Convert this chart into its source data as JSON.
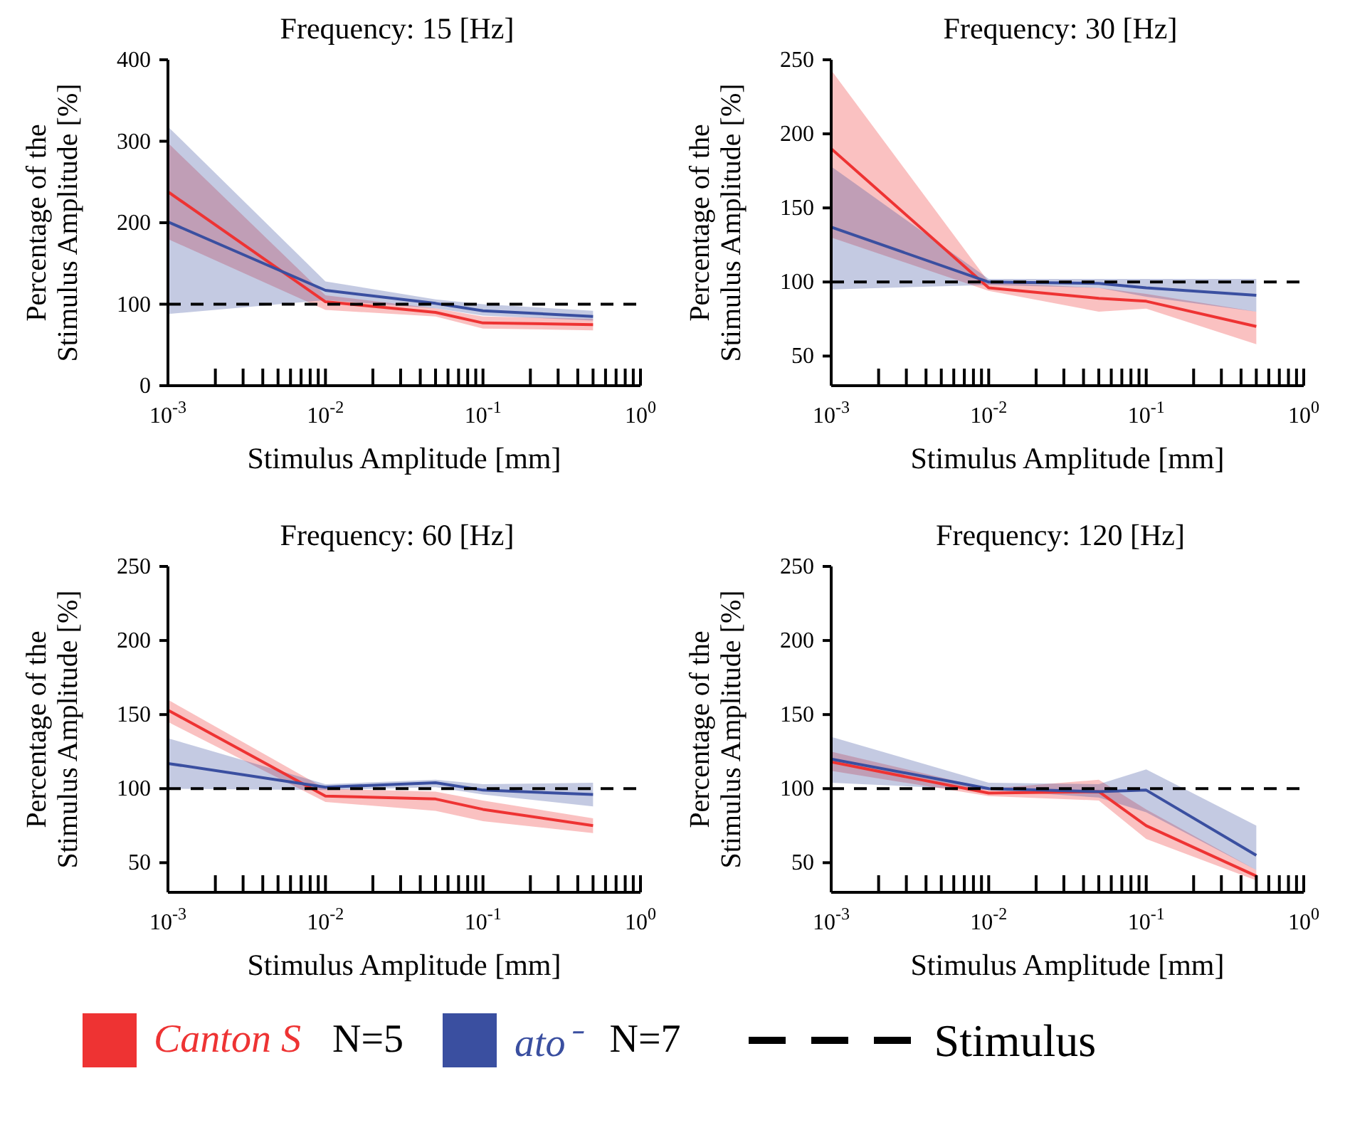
{
  "chart_data": [
    {
      "type": "line",
      "title": "Frequency: 15 [Hz]",
      "xlabel": "Stimulus Amplitude  [mm]",
      "ylabel": "Percentage of the\nStimulus Amplitude [%]",
      "log": "x",
      "legend": "bottom",
      "annotations": [
        "N=5",
        "N=7"
      ],
      "x": [
        0.001,
        0.01,
        0.05,
        0.1,
        0.5
      ],
      "xlim": [
        0.001,
        1
      ],
      "xticks": [
        {
          "value": 0.001,
          "label": "10$^{-3}$"
        },
        {
          "value": 0.002,
          "label": null
        },
        {
          "value": 0.003,
          "label": null
        },
        {
          "value": 0.004,
          "label": null
        },
        {
          "value": 0.005,
          "label": null
        },
        {
          "value": 0.006,
          "label": null
        },
        {
          "value": 0.007,
          "label": null
        },
        {
          "value": 0.008,
          "label": null
        },
        {
          "value": 0.009,
          "label": null
        },
        {
          "value": 0.01,
          "label": "10$^{-2}$"
        },
        {
          "value": 0.02,
          "label": null
        },
        {
          "value": 0.03,
          "label": null
        },
        {
          "value": 0.04,
          "label": null
        },
        {
          "value": 0.05,
          "label": null
        },
        {
          "value": 0.06,
          "label": null
        },
        {
          "value": 0.07,
          "label": null
        },
        {
          "value": 0.08,
          "label": null
        },
        {
          "value": 0.09,
          "label": null
        },
        {
          "value": 0.1,
          "label": "10$^{-1}$"
        },
        {
          "value": 0.2,
          "label": null
        },
        {
          "value": 0.3,
          "label": null
        },
        {
          "value": 0.4,
          "label": null
        },
        {
          "value": 0.5,
          "label": null
        },
        {
          "value": 0.6,
          "label": null
        },
        {
          "value": 0.7,
          "label": null
        },
        {
          "value": 0.8,
          "label": null
        },
        {
          "value": 0.9,
          "label": null
        },
        {
          "value": 1,
          "label": "10$^{0}$"
        }
      ],
      "ylim": [
        0,
        400
      ],
      "yticks": [
        0,
        100,
        200,
        300,
        400
      ],
      "ref_lines": [
        {
          "axis": "y",
          "value": 100,
          "label": "Stimulus",
          "color": "#000000",
          "line_style": "dashed"
        }
      ],
      "series": [
        {
          "name": "Canton S",
          "color": "#ee3333",
          "values": [
            238,
            103,
            90,
            77,
            75
          ],
          "lower": [
            180,
            93,
            85,
            70,
            68
          ],
          "upper": [
            298,
            111,
            95,
            85,
            82
          ]
        },
        {
          "name": "ato⁻",
          "color": "#3a4fa0",
          "values": [
            201,
            117,
            101,
            92,
            85
          ],
          "lower": [
            88,
            105,
            95,
            86,
            80
          ],
          "upper": [
            318,
            128,
            106,
            100,
            92
          ]
        }
      ]
    },
    {
      "type": "line",
      "title": "Frequency: 30 [Hz]",
      "xlabel": "Stimulus Amplitude  [mm]",
      "ylabel": "Percentage of the\nStimulus Amplitude [%]",
      "log": "x",
      "x": [
        0.001,
        0.01,
        0.05,
        0.1,
        0.5
      ],
      "xlim": [
        0.001,
        1
      ],
      "xticks": [
        {
          "value": 0.001,
          "label": "10$^{-3}$"
        },
        {
          "value": 0.002,
          "label": null
        },
        {
          "value": 0.003,
          "label": null
        },
        {
          "value": 0.004,
          "label": null
        },
        {
          "value": 0.005,
          "label": null
        },
        {
          "value": 0.006,
          "label": null
        },
        {
          "value": 0.007,
          "label": null
        },
        {
          "value": 0.008,
          "label": null
        },
        {
          "value": 0.009,
          "label": null
        },
        {
          "value": 0.01,
          "label": "10$^{-2}$"
        },
        {
          "value": 0.02,
          "label": null
        },
        {
          "value": 0.03,
          "label": null
        },
        {
          "value": 0.04,
          "label": null
        },
        {
          "value": 0.05,
          "label": null
        },
        {
          "value": 0.06,
          "label": null
        },
        {
          "value": 0.07,
          "label": null
        },
        {
          "value": 0.08,
          "label": null
        },
        {
          "value": 0.09,
          "label": null
        },
        {
          "value": 0.1,
          "label": "10$^{-1}$"
        },
        {
          "value": 0.2,
          "label": null
        },
        {
          "value": 0.3,
          "label": null
        },
        {
          "value": 0.4,
          "label": null
        },
        {
          "value": 0.5,
          "label": null
        },
        {
          "value": 0.6,
          "label": null
        },
        {
          "value": 0.7,
          "label": null
        },
        {
          "value": 0.8,
          "label": null
        },
        {
          "value": 0.9,
          "label": null
        },
        {
          "value": 1,
          "label": "10$^{0}$"
        }
      ],
      "ylim": [
        30,
        250
      ],
      "yticks": [
        50,
        100,
        150,
        200,
        250
      ],
      "ref_lines": [
        {
          "axis": "y",
          "value": 100,
          "color": "#000000",
          "line_style": "dashed"
        }
      ],
      "series": [
        {
          "color": "#ee3333",
          "values": [
            190,
            96,
            89,
            87,
            70
          ],
          "lower": [
            130,
            94,
            80,
            82,
            58
          ],
          "upper": [
            243,
            100,
            96,
            92,
            80
          ]
        },
        {
          "color": "#3a4fa0",
          "values": [
            137,
            100,
            99,
            96,
            91
          ],
          "lower": [
            95,
            98,
            96,
            90,
            80
          ],
          "upper": [
            178,
            102,
            102,
            102,
            102
          ]
        }
      ]
    },
    {
      "type": "line",
      "title": "Frequency: 60 [Hz]",
      "xlabel": "Stimulus Amplitude  [mm]",
      "ylabel": "Percentage of the\nStimulus Amplitude [%]",
      "log": "x",
      "x": [
        0.001,
        0.01,
        0.05,
        0.1,
        0.5
      ],
      "xlim": [
        0.001,
        1
      ],
      "xticks": [
        {
          "value": 0.001,
          "label": "10$^{-3}$"
        },
        {
          "value": 0.002,
          "label": null
        },
        {
          "value": 0.003,
          "label": null
        },
        {
          "value": 0.004,
          "label": null
        },
        {
          "value": 0.005,
          "label": null
        },
        {
          "value": 0.006,
          "label": null
        },
        {
          "value": 0.007,
          "label": null
        },
        {
          "value": 0.008,
          "label": null
        },
        {
          "value": 0.009,
          "label": null
        },
        {
          "value": 0.01,
          "label": "10$^{-2}$"
        },
        {
          "value": 0.02,
          "label": null
        },
        {
          "value": 0.03,
          "label": null
        },
        {
          "value": 0.04,
          "label": null
        },
        {
          "value": 0.05,
          "label": null
        },
        {
          "value": 0.06,
          "label": null
        },
        {
          "value": 0.07,
          "label": null
        },
        {
          "value": 0.08,
          "label": null
        },
        {
          "value": 0.09,
          "label": null
        },
        {
          "value": 0.1,
          "label": "10$^{-1}$"
        },
        {
          "value": 0.2,
          "label": null
        },
        {
          "value": 0.3,
          "label": null
        },
        {
          "value": 0.4,
          "label": null
        },
        {
          "value": 0.5,
          "label": null
        },
        {
          "value": 0.6,
          "label": null
        },
        {
          "value": 0.7,
          "label": null
        },
        {
          "value": 0.8,
          "label": null
        },
        {
          "value": 0.9,
          "label": null
        },
        {
          "value": 1,
          "label": "10$^{0}$"
        }
      ],
      "ylim": [
        30,
        250
      ],
      "yticks": [
        50,
        100,
        150,
        200,
        250
      ],
      "ref_lines": [
        {
          "axis": "y",
          "value": 100,
          "color": "#000000",
          "line_style": "dashed"
        }
      ],
      "series": [
        {
          "color": "#ee3333",
          "values": [
            153,
            95,
            93,
            86,
            75
          ],
          "lower": [
            145,
            91,
            85,
            78,
            70
          ],
          "upper": [
            160,
            100,
            98,
            92,
            80
          ]
        },
        {
          "color": "#3a4fa0",
          "values": [
            117,
            101,
            104,
            99,
            96
          ],
          "lower": [
            100,
            99,
            101,
            96,
            88
          ],
          "upper": [
            134,
            103,
            106,
            103,
            104
          ]
        }
      ]
    },
    {
      "type": "line",
      "title": "Frequency: 120 [Hz]",
      "xlabel": "Stimulus Amplitude  [mm]",
      "ylabel": "Percentage of the\nStimulus Amplitude [%]",
      "log": "x",
      "x": [
        0.001,
        0.01,
        0.05,
        0.1,
        0.5
      ],
      "xlim": [
        0.001,
        1
      ],
      "xticks": [
        {
          "value": 0.001,
          "label": "10$^{-3}$"
        },
        {
          "value": 0.002,
          "label": null
        },
        {
          "value": 0.003,
          "label": null
        },
        {
          "value": 0.004,
          "label": null
        },
        {
          "value": 0.005,
          "label": null
        },
        {
          "value": 0.006,
          "label": null
        },
        {
          "value": 0.007,
          "label": null
        },
        {
          "value": 0.008,
          "label": null
        },
        {
          "value": 0.009,
          "label": null
        },
        {
          "value": 0.01,
          "label": "10$^{-2}$"
        },
        {
          "value": 0.02,
          "label": null
        },
        {
          "value": 0.03,
          "label": null
        },
        {
          "value": 0.04,
          "label": null
        },
        {
          "value": 0.05,
          "label": null
        },
        {
          "value": 0.06,
          "label": null
        },
        {
          "value": 0.07,
          "label": null
        },
        {
          "value": 0.08,
          "label": null
        },
        {
          "value": 0.09,
          "label": null
        },
        {
          "value": 0.1,
          "label": "10$^{-1}$"
        },
        {
          "value": 0.2,
          "label": null
        },
        {
          "value": 0.3,
          "label": null
        },
        {
          "value": 0.4,
          "label": null
        },
        {
          "value": 0.5,
          "label": null
        },
        {
          "value": 0.6,
          "label": null
        },
        {
          "value": 0.7,
          "label": null
        },
        {
          "value": 0.8,
          "label": null
        },
        {
          "value": 0.9,
          "label": null
        },
        {
          "value": 1,
          "label": "10$^{0}$"
        }
      ],
      "ylim": [
        30,
        250
      ],
      "yticks": [
        50,
        100,
        150,
        200,
        250
      ],
      "ref_lines": [
        {
          "axis": "y",
          "value": 100,
          "color": "#000000",
          "line_style": "dashed"
        }
      ],
      "series": [
        {
          "color": "#ee3333",
          "values": [
            118,
            97,
            98,
            75,
            41
          ],
          "lower": [
            112,
            95,
            92,
            66,
            38
          ],
          "upper": [
            125,
            100,
            106,
            86,
            45
          ]
        },
        {
          "color": "#3a4fa0",
          "values": [
            120,
            100,
            98,
            99,
            55
          ],
          "lower": [
            104,
            99,
            94,
            84,
            45
          ],
          "upper": [
            135,
            104,
            103,
            113,
            75
          ]
        }
      ]
    }
  ]
}
